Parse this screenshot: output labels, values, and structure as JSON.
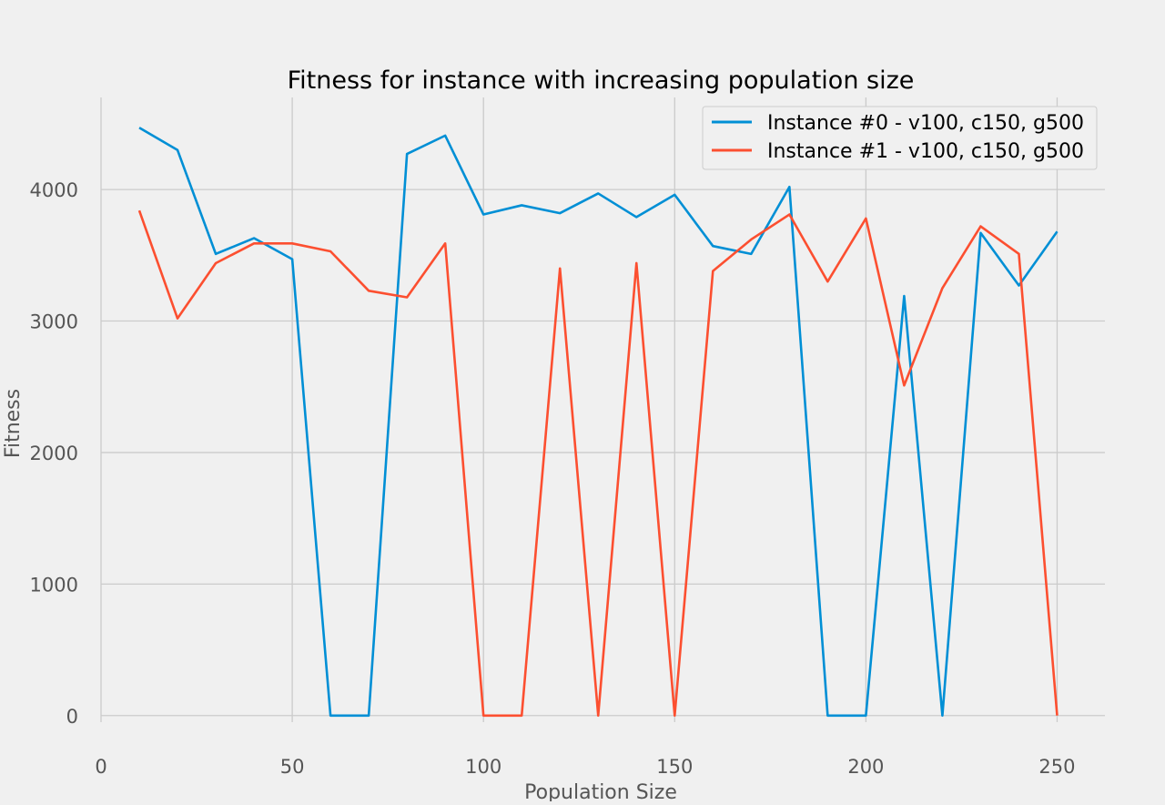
{
  "chart_data": {
    "type": "line",
    "title": "Fitness for instance with increasing population size",
    "xlabel": "Population Size",
    "ylabel": "Fitness",
    "xlim": [
      0,
      262.5
    ],
    "ylim": [
      -50,
      4700
    ],
    "xticks": [
      0,
      50,
      100,
      150,
      200,
      250
    ],
    "yticks": [
      0,
      1000,
      2000,
      3000,
      4000
    ],
    "grid": true,
    "legend_position": "top-right",
    "x": [
      10,
      20,
      30,
      40,
      50,
      60,
      70,
      80,
      90,
      100,
      110,
      120,
      130,
      140,
      150,
      160,
      170,
      180,
      190,
      200,
      210,
      220,
      230,
      240,
      250
    ],
    "series": [
      {
        "name": "Instance #0 - v100, c150, g500",
        "color": "#008fd5",
        "values": [
          4470,
          4300,
          3510,
          3630,
          3470,
          0,
          0,
          4270,
          4410,
          3810,
          3880,
          3820,
          3970,
          3790,
          3960,
          3570,
          3510,
          4020,
          0,
          0,
          3190,
          0,
          3670,
          3270,
          3680
        ]
      },
      {
        "name": "Instance #1 - v100, c150, g500",
        "color": "#fc4f30",
        "values": [
          3840,
          3020,
          3440,
          3590,
          3590,
          3530,
          3230,
          3180,
          3590,
          0,
          0,
          3400,
          0,
          3440,
          0,
          3380,
          3620,
          3810,
          3300,
          3780,
          2510,
          3250,
          3720,
          3510,
          0
        ]
      }
    ]
  }
}
